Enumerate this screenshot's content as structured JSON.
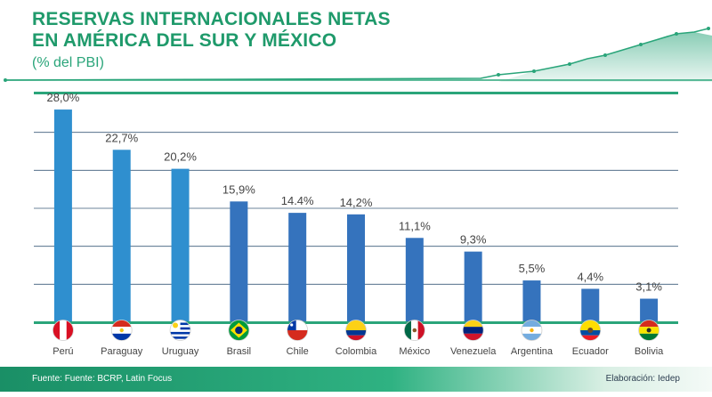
{
  "header": {
    "title_line1": "RESERVAS INTERNACIONALES NETAS",
    "title_line2": "EN AMÉRICA DEL SUR Y MÉXICO",
    "subtitle": "(% del PBI)"
  },
  "footer": {
    "source": "Fuente: Fuente: BCRP, Latin Focus",
    "credit": "Elaboración: Iedep"
  },
  "colors": {
    "brand_green": "#1f9a6b",
    "bar_light": "#2f8fcf",
    "bar_dark": "#3573bd",
    "grid": "#3b5b7a",
    "baseline": "#2aa57a",
    "label": "#444444"
  },
  "chart_data": {
    "type": "bar",
    "title": "Reservas internacionales netas en América del Sur y México",
    "ylabel": "% del PBI",
    "xlabel": "",
    "ylim": [
      0,
      30
    ],
    "grid": true,
    "categories": [
      "Perú",
      "Paraguay",
      "Uruguay",
      "Brasil",
      "Chile",
      "Colombia",
      "México",
      "Venezuela",
      "Argentina",
      "Ecuador",
      "Bolivia"
    ],
    "values": [
      28.0,
      22.7,
      20.2,
      15.9,
      14.4,
      14.2,
      11.1,
      9.3,
      5.5,
      4.4,
      3.1
    ],
    "data_labels": [
      "28,0%",
      "22,7%",
      "20,2%",
      "15,9%",
      "14.4%",
      "14,2%",
      "11,1%",
      "9,3%",
      "5,5%",
      "4,4%",
      "3,1%"
    ],
    "flags": [
      "peru-flag-icon",
      "paraguay-flag-icon",
      "uruguay-flag-icon",
      "brazil-flag-icon",
      "chile-flag-icon",
      "colombia-flag-icon",
      "mexico-flag-icon",
      "venezuela-flag-icon",
      "argentina-flag-icon",
      "ecuador-flag-icon",
      "bolivia-flag-icon"
    ]
  }
}
